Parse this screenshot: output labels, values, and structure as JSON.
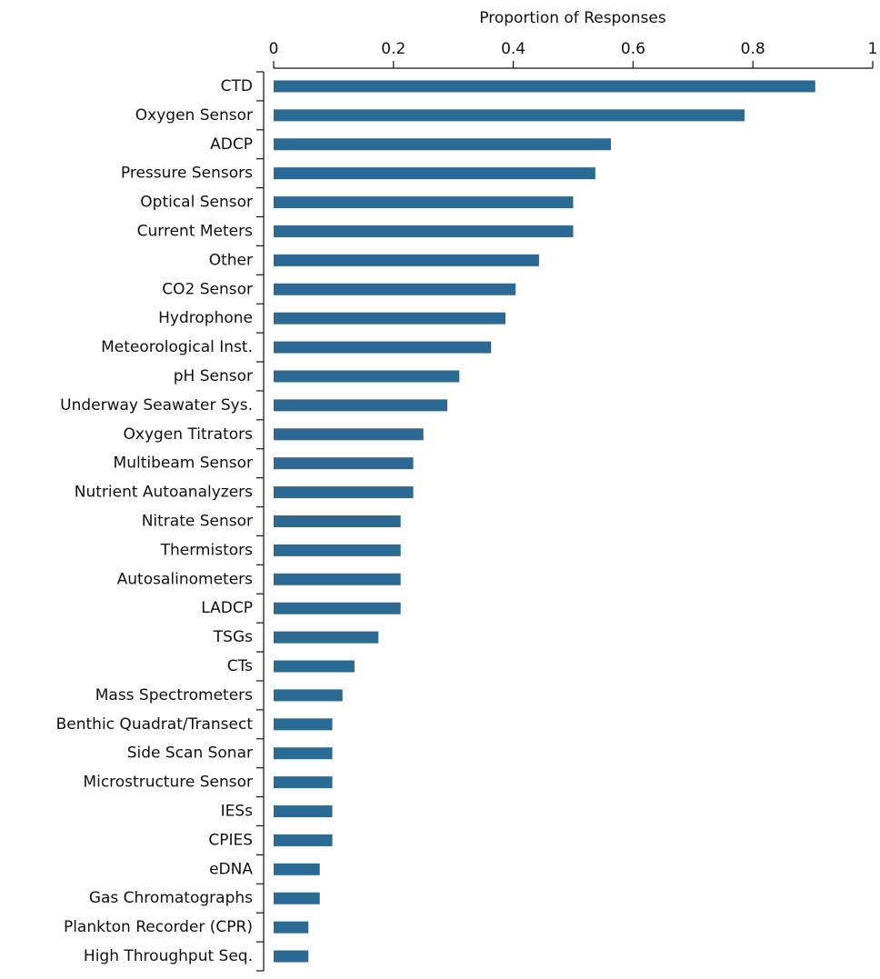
{
  "chart_data": {
    "type": "barh",
    "xlabel": "Proportion of Responses",
    "categories": [
      "CTD",
      "Oxygen Sensor",
      "ADCP",
      "Pressure Sensors",
      "Optical Sensor",
      "Current Meters",
      "Other",
      "CO2 Sensor",
      "Hydrophone",
      "Meteorological Inst.",
      "pH Sensor",
      "Underway Seawater Sys.",
      "Oxygen Titrators",
      "Multibeam Sensor",
      "Nutrient Autoanalyzers",
      "Nitrate Sensor",
      "Thermistors",
      "Autosalinometers",
      "LADCP",
      "TSGs",
      "CTs",
      "Mass Spectrometers",
      "Benthic Quadrat/Transect",
      "Side Scan Sonar",
      "Microstructure Sensor",
      "IESs",
      "CPIES",
      "eDNA",
      "Gas Chromatographs",
      "Plankton Recorder (CPR)",
      "High Throughput Seq."
    ],
    "values": [
      0.904,
      0.786,
      0.563,
      0.537,
      0.5,
      0.5,
      0.443,
      0.404,
      0.387,
      0.363,
      0.31,
      0.29,
      0.25,
      0.233,
      0.233,
      0.212,
      0.212,
      0.212,
      0.212,
      0.175,
      0.135,
      0.115,
      0.098,
      0.098,
      0.098,
      0.098,
      0.098,
      0.077,
      0.077,
      0.058,
      0.058
    ],
    "color": "#2c6a94",
    "xlim": [
      0,
      1
    ],
    "xticks": [
      0,
      0.2,
      0.4,
      0.6,
      0.8,
      1
    ]
  }
}
